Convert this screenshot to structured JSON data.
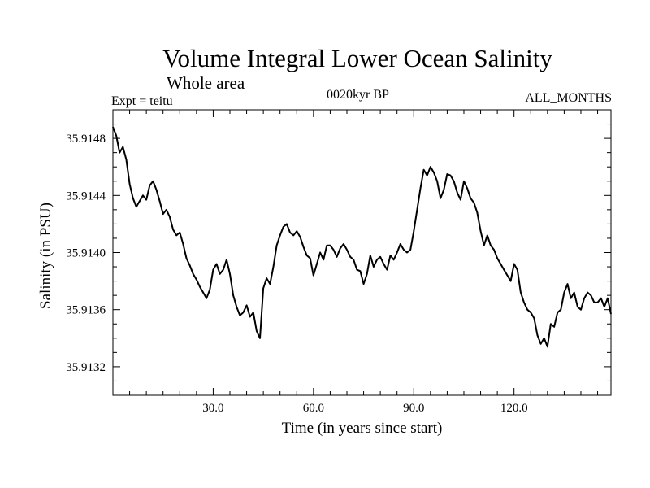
{
  "header": {
    "title": "Volume Integral Lower Ocean Salinity",
    "subtitle": "Whole area",
    "experiment": "Expt = teitu",
    "period": "0020kyr BP",
    "months": "ALL_MONTHS"
  },
  "chart_data": {
    "type": "line",
    "title": "Volume Integral Lower Ocean Salinity",
    "subtitle": "Whole area",
    "xlabel": "Time (in years since start)",
    "ylabel": "Salinity (in PSU)",
    "xlim": [
      0,
      149
    ],
    "ylim": [
      35.913,
      35.915
    ],
    "xticks": [
      30,
      60,
      90,
      120
    ],
    "xtick_labels": [
      "30.0",
      "60.0",
      "90.0",
      "120.0"
    ],
    "x_minor_step": 5,
    "yticks": [
      35.9132,
      35.9136,
      35.914,
      35.9144,
      35.9148
    ],
    "ytick_labels": [
      "35.9132",
      "35.9136",
      "35.9140",
      "35.9144",
      "35.9148"
    ],
    "y_minor_step": 0.0001,
    "grid": false,
    "series": [
      {
        "name": "Salinity",
        "x": [
          0,
          1,
          2,
          3,
          4,
          5,
          6,
          7,
          8,
          9,
          10,
          11,
          12,
          13,
          14,
          15,
          16,
          17,
          18,
          19,
          20,
          21,
          22,
          23,
          24,
          25,
          26,
          27,
          28,
          29,
          30,
          31,
          32,
          33,
          34,
          35,
          36,
          37,
          38,
          39,
          40,
          41,
          42,
          43,
          44,
          45,
          46,
          47,
          48,
          49,
          50,
          51,
          52,
          53,
          54,
          55,
          56,
          57,
          58,
          59,
          60,
          61,
          62,
          63,
          64,
          65,
          66,
          67,
          68,
          69,
          70,
          71,
          72,
          73,
          74,
          75,
          76,
          77,
          78,
          79,
          80,
          81,
          82,
          83,
          84,
          85,
          86,
          87,
          88,
          89,
          90,
          91,
          92,
          93,
          94,
          95,
          96,
          97,
          98,
          99,
          100,
          101,
          102,
          103,
          104,
          105,
          106,
          107,
          108,
          109,
          110,
          111,
          112,
          113,
          114,
          115,
          116,
          117,
          118,
          119,
          120,
          121,
          122,
          123,
          124,
          125,
          126,
          127,
          128,
          129,
          130,
          131,
          132,
          133,
          134,
          135,
          136,
          137,
          138,
          139,
          140,
          141,
          142,
          143,
          144,
          145,
          146,
          147,
          148,
          149
        ],
        "values": [
          35.91488,
          35.91482,
          35.9147,
          35.91474,
          35.91465,
          35.91448,
          35.91438,
          35.91432,
          35.91436,
          35.9144,
          35.91437,
          35.91447,
          35.9145,
          35.91444,
          35.91436,
          35.91427,
          35.9143,
          35.91425,
          35.91416,
          35.91412,
          35.91414,
          35.91406,
          35.91396,
          35.91391,
          35.91385,
          35.91381,
          35.91376,
          35.91372,
          35.91368,
          35.91374,
          35.91388,
          35.91392,
          35.91385,
          35.91388,
          35.91395,
          35.91385,
          35.9137,
          35.91362,
          35.91356,
          35.91358,
          35.91363,
          35.91355,
          35.91358,
          35.91345,
          35.9134,
          35.91375,
          35.91382,
          35.91378,
          35.9139,
          35.91405,
          35.91412,
          35.91418,
          35.9142,
          35.91414,
          35.91412,
          35.91415,
          35.91411,
          35.91404,
          35.91398,
          35.91396,
          35.91384,
          35.91392,
          35.914,
          35.91395,
          35.91405,
          35.91405,
          35.91402,
          35.91397,
          35.91403,
          35.91406,
          35.91402,
          35.91397,
          35.91395,
          35.91388,
          35.91387,
          35.91378,
          35.91385,
          35.91398,
          35.9139,
          35.91395,
          35.91397,
          35.91392,
          35.91388,
          35.91398,
          35.91395,
          35.914,
          35.91406,
          35.91402,
          35.914,
          35.91402,
          35.91415,
          35.9143,
          35.91445,
          35.91458,
          35.91454,
          35.9146,
          35.91456,
          35.9145,
          35.91438,
          35.91444,
          35.91455,
          35.91454,
          35.9145,
          35.91442,
          35.91437,
          35.9145,
          35.91445,
          35.91438,
          35.91435,
          35.91428,
          35.91415,
          35.91405,
          35.91412,
          35.91405,
          35.91402,
          35.91396,
          35.91392,
          35.91388,
          35.91384,
          35.9138,
          35.91392,
          35.91388,
          35.91372,
          35.91365,
          35.9136,
          35.91358,
          35.91354,
          35.91342,
          35.91336,
          35.9134,
          35.91334,
          35.9135,
          35.91348,
          35.91358,
          35.9136,
          35.91372,
          35.91378,
          35.91368,
          35.91372,
          35.91362,
          35.9136,
          35.91368,
          35.91372,
          35.9137,
          35.91365,
          35.91365,
          35.91368,
          35.91362,
          35.91368,
          35.91357
        ]
      }
    ]
  }
}
